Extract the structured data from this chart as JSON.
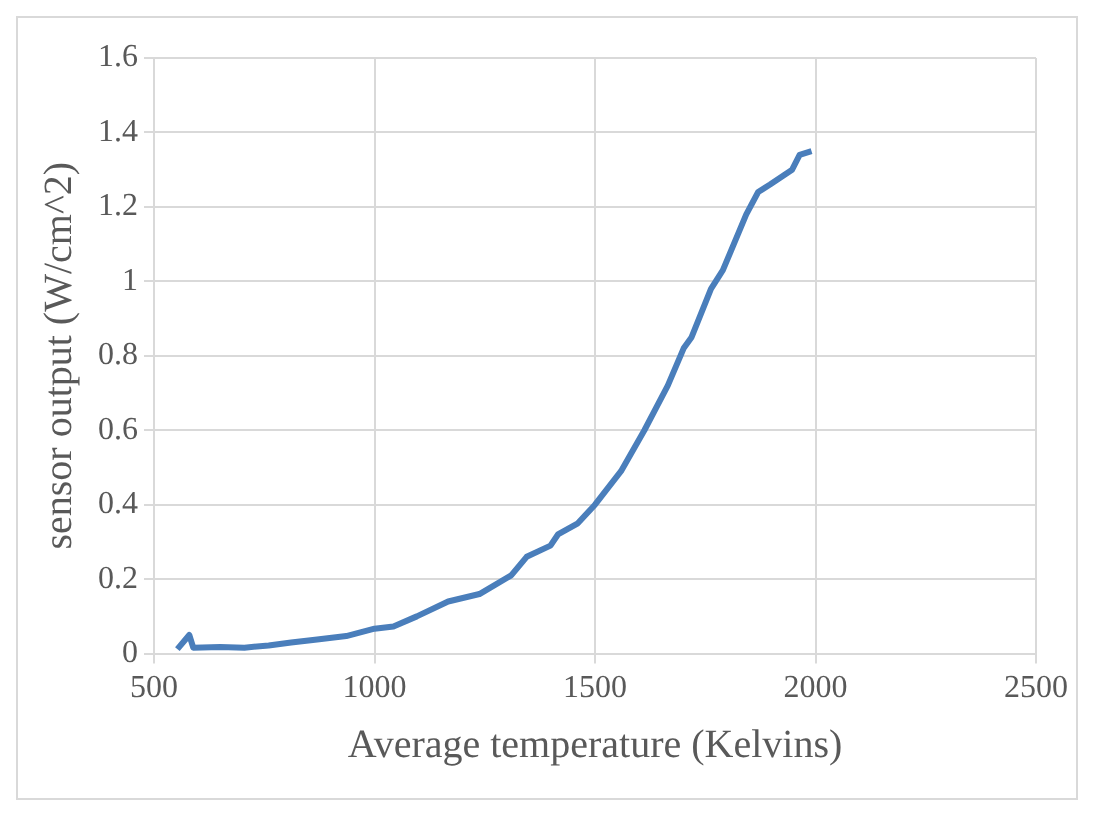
{
  "chart_data": {
    "type": "line",
    "xlabel": "Average temperature (Kelvins)",
    "ylabel": "sensor output (W/cm^2)",
    "x": [
      553,
      580,
      589,
      650,
      705,
      760,
      811,
      870,
      936,
      1000,
      1043,
      1096,
      1167,
      1238,
      1310,
      1345,
      1399,
      1416,
      1461,
      1500,
      1559,
      1612,
      1665,
      1701,
      1719,
      1763,
      1790,
      1843,
      1870,
      1897,
      1947,
      1964,
      1991
    ],
    "series": [
      {
        "color": "#4a7ebb",
        "values": [
          0.012,
          0.05,
          0.016,
          0.018,
          0.016,
          0.022,
          0.03,
          0.038,
          0.047,
          0.067,
          0.073,
          0.1,
          0.14,
          0.16,
          0.21,
          0.26,
          0.29,
          0.32,
          0.35,
          0.4,
          0.49,
          0.6,
          0.72,
          0.82,
          0.85,
          0.98,
          1.03,
          1.18,
          1.24,
          1.26,
          1.3,
          1.34,
          1.35
        ]
      }
    ],
    "xlim": [
      500,
      2500
    ],
    "xticks": [
      500,
      1000,
      1500,
      2000,
      2500
    ],
    "ylim": [
      0,
      1.6
    ],
    "yticks": [
      0,
      0.2,
      0.4,
      0.6,
      0.8,
      1,
      1.2,
      1.4,
      1.6
    ],
    "grid": true,
    "legend": false,
    "marker": "none",
    "line_style": "solid"
  }
}
